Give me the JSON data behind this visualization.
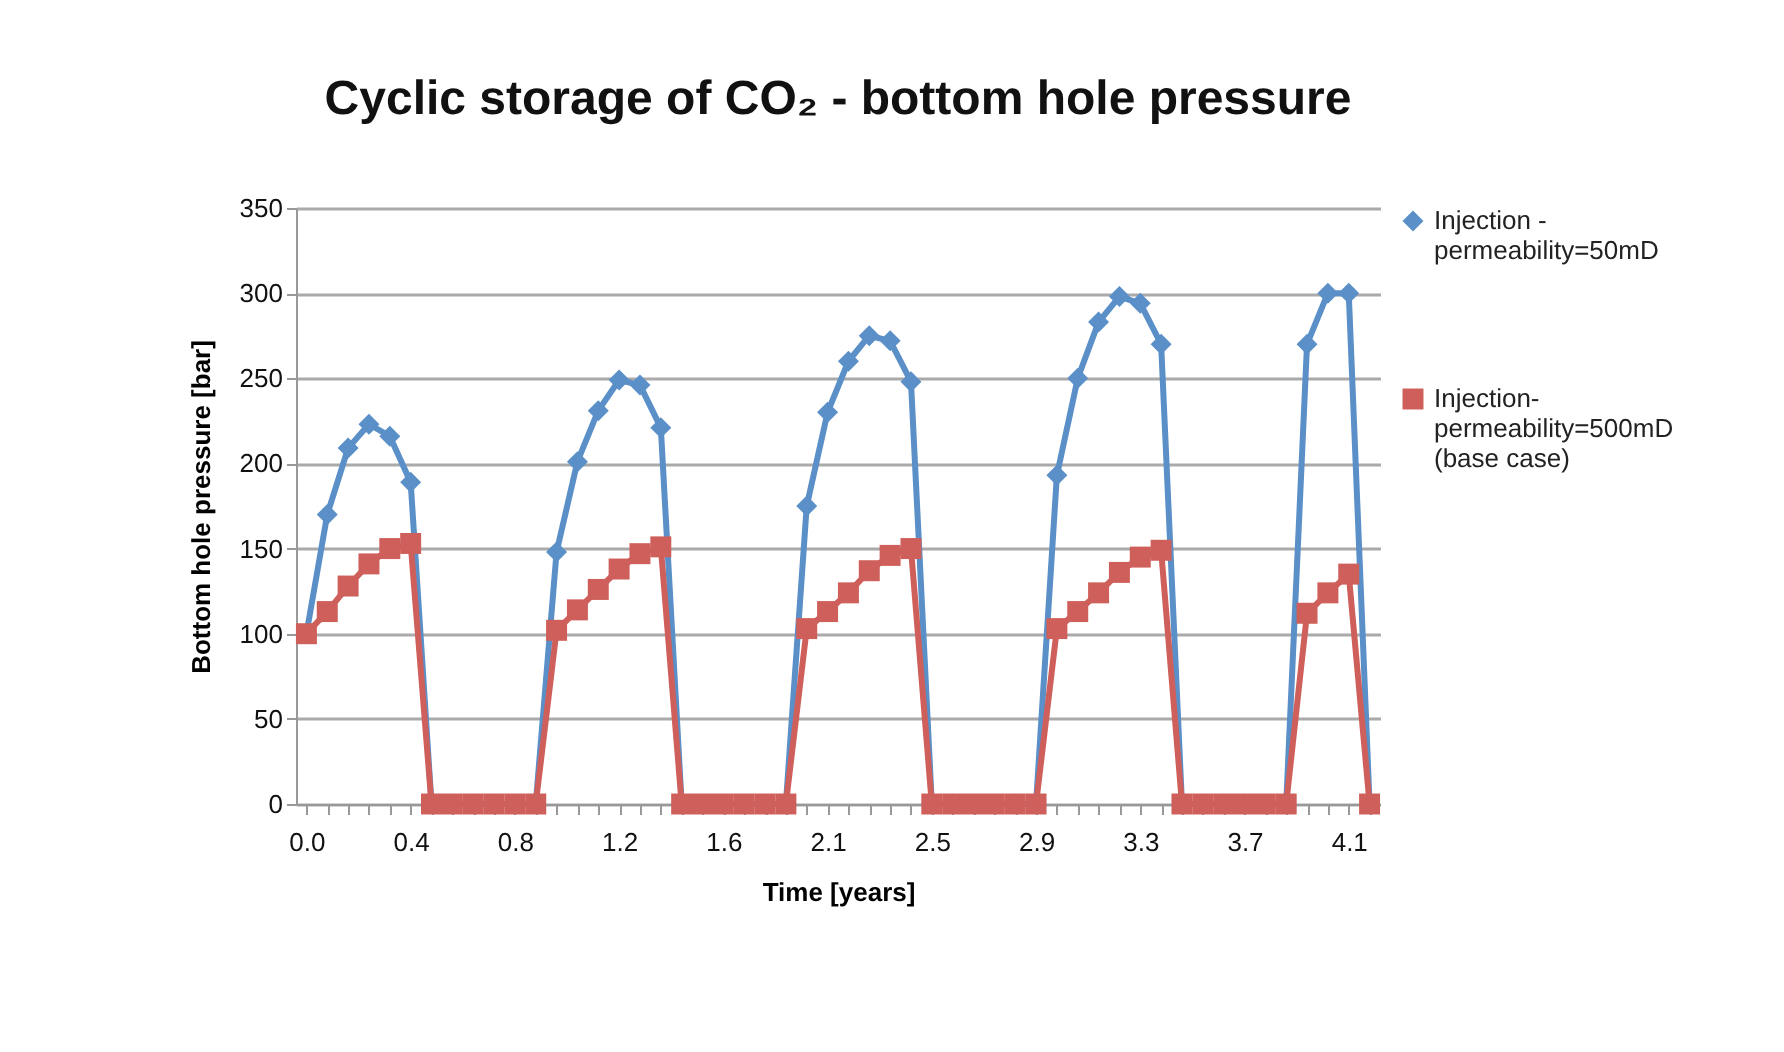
{
  "chart_data": {
    "type": "line",
    "title": "Cyclic storage of CO₂ - bottom hole pressure",
    "xlabel": "Time [years]",
    "ylabel": "Bottom hole pressure [bar]",
    "categories": [
      "0.0",
      null,
      null,
      null,
      null,
      "0.4",
      null,
      null,
      null,
      null,
      "0.8",
      null,
      null,
      null,
      null,
      "1.2",
      null,
      null,
      null,
      null,
      "1.6",
      null,
      null,
      null,
      null,
      "2.1",
      null,
      null,
      null,
      null,
      "2.5",
      null,
      null,
      null,
      null,
      "2.9",
      null,
      null,
      null,
      null,
      "3.3",
      null,
      null,
      null,
      null,
      "3.7",
      null,
      null,
      null,
      null,
      "4.1",
      null
    ],
    "series": [
      {
        "name": "Injection - permeability=50mD",
        "color": "#5a8fc8",
        "marker": "diamond",
        "values": [
          100,
          170,
          209,
          223,
          216,
          189,
          0,
          0,
          0,
          0,
          0,
          0,
          148,
          201,
          231,
          249,
          246,
          221,
          0,
          0,
          0,
          0,
          0,
          0,
          175,
          230,
          260,
          275,
          272,
          248,
          0,
          0,
          0,
          0,
          0,
          0,
          193,
          250,
          283,
          298,
          294,
          270,
          0,
          0,
          0,
          0,
          0,
          0,
          270,
          300,
          300,
          0
        ]
      },
      {
        "name": "Injection-permeability=500mD (base case)",
        "color": "#cf5f5a",
        "marker": "square",
        "values": [
          100,
          113,
          128,
          141,
          150,
          153,
          0,
          0,
          0,
          0,
          0,
          0,
          102,
          114,
          126,
          138,
          147,
          151,
          0,
          0,
          0,
          0,
          0,
          0,
          103,
          113,
          124,
          137,
          146,
          150,
          0,
          0,
          0,
          0,
          0,
          0,
          103,
          113,
          124,
          136,
          145,
          149,
          0,
          0,
          0,
          0,
          0,
          0,
          112,
          124,
          135,
          0
        ]
      }
    ],
    "ylim": [
      0,
      350
    ],
    "yticks": [
      0,
      50,
      100,
      150,
      200,
      250,
      300,
      350
    ],
    "grid": "y",
    "legend": "right",
    "line_style": "solid"
  }
}
